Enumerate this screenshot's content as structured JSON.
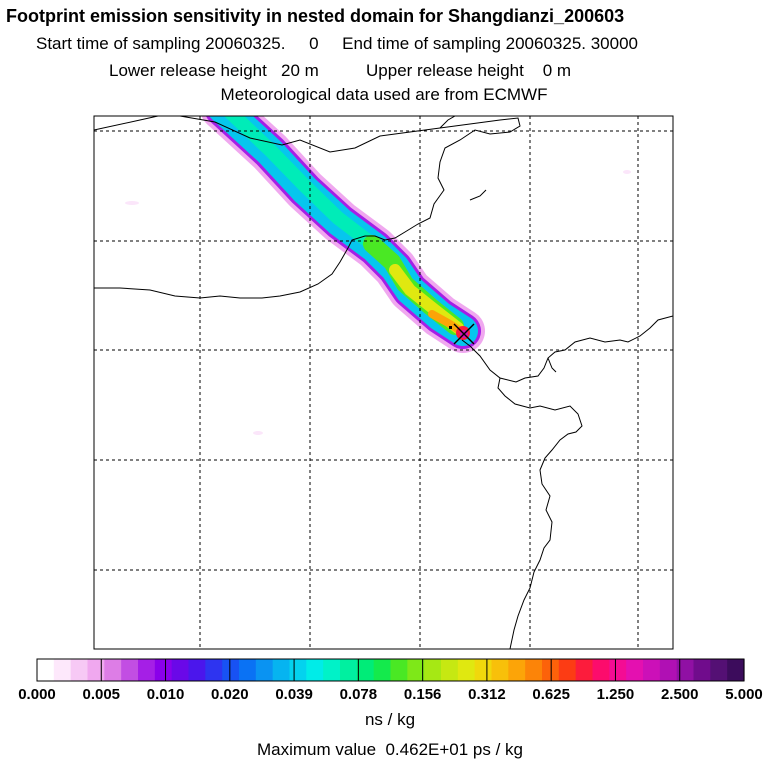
{
  "header": {
    "title": "Footprint emission sensitivity in nested domain for Shangdianzi_200603",
    "sampling_line": "Start time of sampling 20060325.     0     End time of sampling 20060325. 30000",
    "release_line": "Lower release height   20 m          Upper release height    0 m",
    "met_line": "Meteorological data used are from ECMWF"
  },
  "chart_data": {
    "type": "heatmap",
    "title": "Footprint emission sensitivity in nested domain for Shangdianzi_200603",
    "grid": true,
    "grid_style": "dashed",
    "colorbar": {
      "ticks": [
        "0.000",
        "0.005",
        "0.010",
        "0.020",
        "0.039",
        "0.078",
        "0.156",
        "0.312",
        "0.625",
        "1.250",
        "2.500",
        "5.000"
      ],
      "units": "ns / kg",
      "colors": [
        "#ffffff",
        "#fde8fb",
        "#f7c9f5",
        "#f0a8ef",
        "#dd7de6",
        "#c24ee3",
        "#a51fe6",
        "#8a00ea",
        "#6a08e8",
        "#4b16ec",
        "#2e34f0",
        "#1852f3",
        "#0a72f4",
        "#0a93f2",
        "#06b4f0",
        "#04d2ee",
        "#00ece8",
        "#00f2c8",
        "#00f0a0",
        "#00ec78",
        "#14ea4c",
        "#4ae824",
        "#7ee818",
        "#a6e814",
        "#c6e812",
        "#e0e810",
        "#f0d80c",
        "#f8c00a",
        "#fca408",
        "#fc8408",
        "#fc620a",
        "#fc3c14",
        "#fc1c3c",
        "#fc0c6c",
        "#f40c94",
        "#e410b0",
        "#cc10b8",
        "#b010b4",
        "#9010a4",
        "#700c8c",
        "#541074",
        "#3c0c5c"
      ]
    },
    "max_value": "Maximum value  0.462E+01 ps / kg",
    "receptor": "Shangdianzi"
  }
}
